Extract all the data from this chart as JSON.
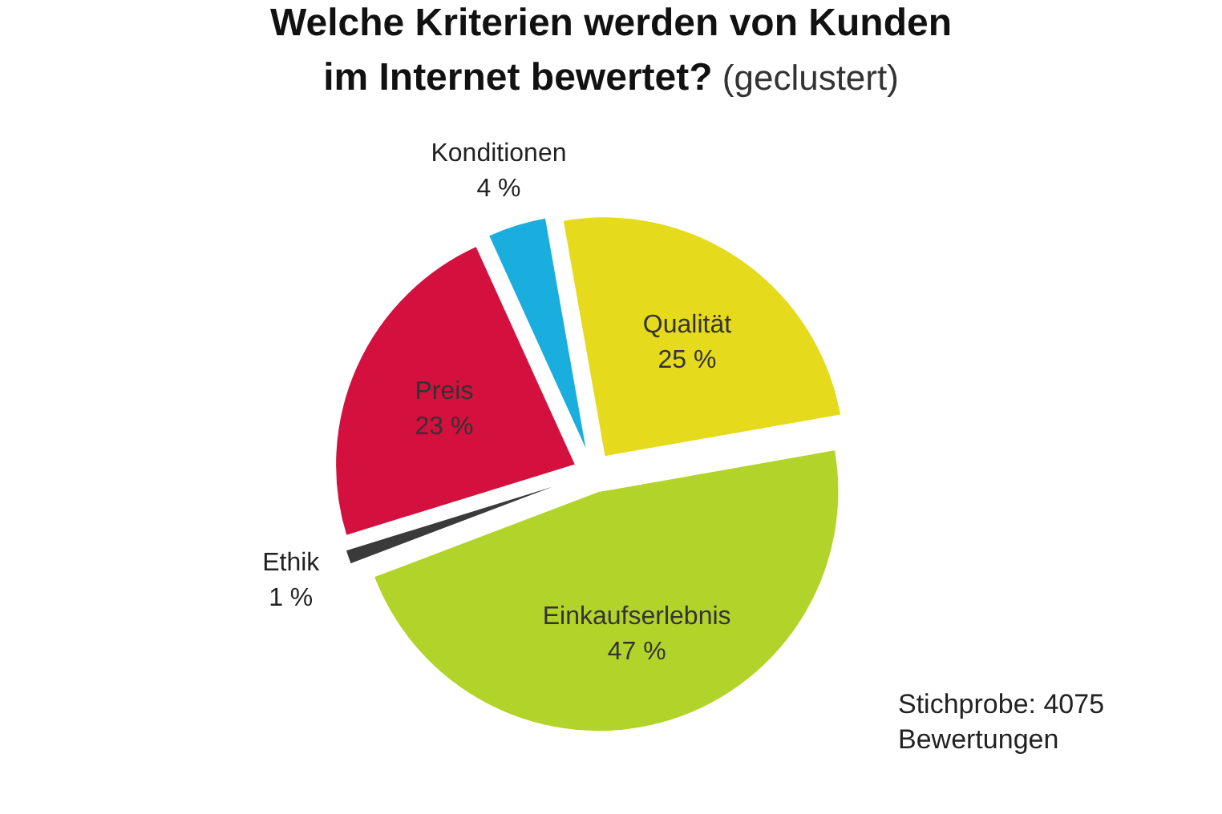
{
  "chart_data": {
    "type": "pie",
    "title": "Welche Kriterien werden von Kunden im Internet bewertet?",
    "subtitle": "(geclustert)",
    "categories": [
      "Qualität",
      "Einkaufserlebnis",
      "Ethik",
      "Preis",
      "Konditionen"
    ],
    "values": [
      25,
      47,
      1,
      23,
      4
    ],
    "colors": [
      "#e6da1c",
      "#b2d42a",
      "#3a3a3a",
      "#d4103e",
      "#1aaede"
    ],
    "value_labels": [
      "25 %",
      "47 %",
      "1 %",
      "23 %",
      "4 %"
    ],
    "annotations": [
      "Stichprobe: 4075 Bewertungen"
    ]
  }
}
